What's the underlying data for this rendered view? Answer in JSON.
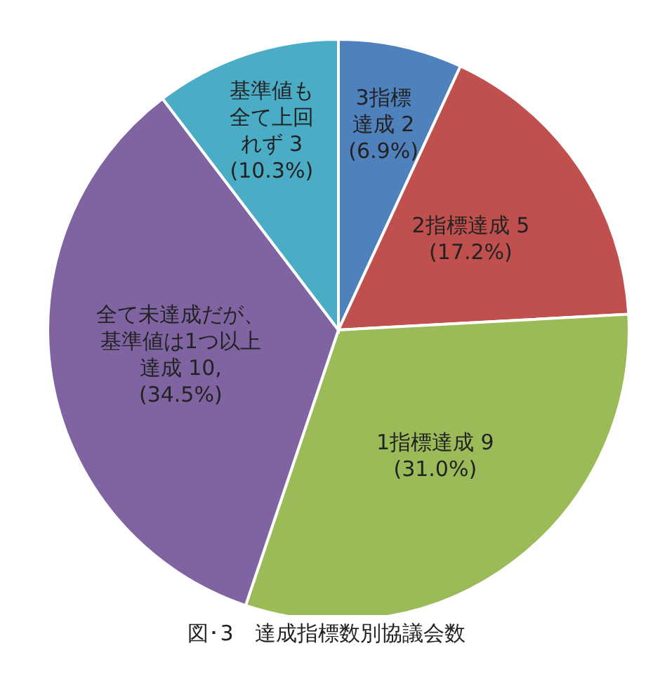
{
  "chart_data": {
    "type": "pie",
    "title": "図･3　達成指標数別協議会数",
    "categories": [
      "3指標達成 2 (6.9%)",
      "2指標達成 5 (17.2%)",
      "1指標達成 9 (31.0%)",
      "全て未達成だが、基準値は1つ以上達成 10, (34.5%)",
      "基準値も全て上回れず 3 (10.3%)"
    ],
    "values": [
      2,
      5,
      9,
      10,
      3
    ],
    "colors": [
      "#4f81bd",
      "#c0504d",
      "#9bbb59",
      "#8064a2",
      "#4bacc6"
    ]
  }
}
